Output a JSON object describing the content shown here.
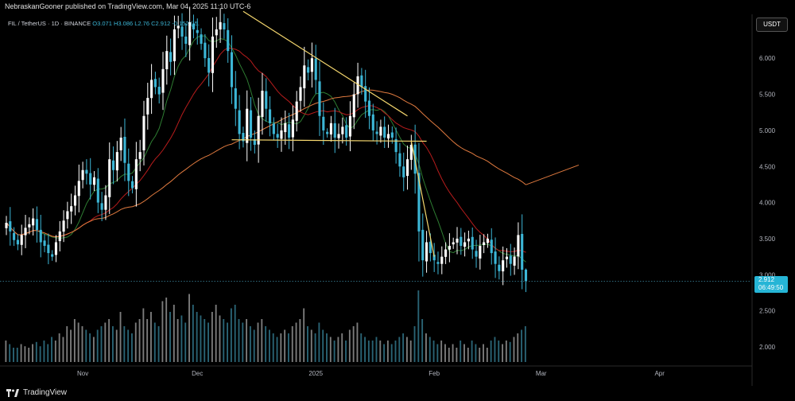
{
  "header": {
    "publisher": "NebraskanGooner published on TradingView.com, Mar 04, 2025 11:10 UTC-6"
  },
  "legend": {
    "symbol": "FIL / TetherUS · 1D · BINANCE",
    "ohlc": "O3.071  H3.086  L2.76  C2.912  -0.152 (-5."
  },
  "currency": "USDT",
  "price_tag": {
    "price": "2.912",
    "countdown": "06:49:50"
  },
  "brand": {
    "name": "TradingView"
  },
  "chart_data": {
    "type": "candlestick",
    "title": "",
    "x_ticks": [
      {
        "label": "Nov",
        "date": "2024-11-01"
      },
      {
        "label": "Dec",
        "date": "2024-12-01"
      },
      {
        "label": "2025",
        "date": "2025-01-01"
      },
      {
        "label": "Feb",
        "date": "2025-02-01"
      },
      {
        "label": "Mar",
        "date": "2025-03-01"
      },
      {
        "label": "Apr",
        "date": "2025-04-01"
      }
    ],
    "y_ticks": [
      "6.000",
      "5.500",
      "5.000",
      "4.500",
      "4.000",
      "3.500",
      "3.000",
      "2.500",
      "2.000"
    ],
    "ylim": [
      1.7,
      6.6
    ],
    "last_price": 2.912,
    "closes": [
      3.72,
      3.6,
      3.48,
      3.42,
      3.55,
      3.65,
      3.7,
      3.78,
      3.62,
      3.45,
      3.4,
      3.3,
      3.25,
      3.45,
      3.6,
      3.75,
      3.88,
      3.95,
      4.1,
      4.3,
      4.45,
      4.4,
      4.25,
      4.35,
      4.0,
      3.9,
      4.1,
      4.6,
      4.45,
      4.7,
      4.9,
      4.55,
      4.3,
      4.2,
      4.6,
      4.7,
      5.2,
      5.45,
      5.7,
      5.6,
      5.5,
      5.85,
      6.1,
      5.95,
      6.4,
      6.45,
      6.3,
      6.2,
      6.5,
      6.4,
      6.35,
      6.2,
      6.0,
      5.8,
      6.3,
      6.4,
      6.5,
      6.4,
      6.1,
      5.6,
      5.3,
      4.95,
      4.85,
      5.3,
      4.9,
      4.8,
      5.2,
      5.55,
      5.3,
      5.1,
      4.95,
      4.9,
      5.0,
      5.1,
      4.9,
      5.15,
      5.4,
      5.6,
      5.9,
      5.8,
      6.0,
      5.7,
      5.2,
      5.0,
      4.95,
      5.1,
      4.9,
      4.95,
      5.05,
      4.9,
      5.2,
      5.5,
      5.75,
      5.6,
      5.4,
      5.2,
      5.0,
      4.95,
      5.05,
      4.9,
      4.95,
      4.9,
      4.7,
      4.5,
      4.35,
      4.6,
      4.8,
      4.4,
      3.6,
      3.2,
      3.45,
      3.3,
      3.2,
      3.15,
      3.25,
      3.35,
      3.4,
      3.45,
      3.5,
      3.4,
      3.45,
      3.5,
      3.35,
      3.25,
      3.4,
      3.45,
      3.5,
      3.3,
      3.15,
      3.05,
      3.2,
      3.25,
      3.15,
      3.25,
      3.55,
      3.07,
      2.912
    ],
    "volumes": [
      0.3,
      0.25,
      0.2,
      0.2,
      0.25,
      0.22,
      0.2,
      0.25,
      0.28,
      0.22,
      0.3,
      0.25,
      0.35,
      0.3,
      0.4,
      0.35,
      0.5,
      0.45,
      0.6,
      0.55,
      0.5,
      0.45,
      0.4,
      0.35,
      0.45,
      0.5,
      0.55,
      0.6,
      0.5,
      0.45,
      0.7,
      0.5,
      0.45,
      0.4,
      0.55,
      0.6,
      0.75,
      0.6,
      0.7,
      0.55,
      0.5,
      0.85,
      0.9,
      0.7,
      0.8,
      0.6,
      0.65,
      0.55,
      0.95,
      0.8,
      0.7,
      0.65,
      0.6,
      0.55,
      0.7,
      0.8,
      0.65,
      0.6,
      0.55,
      0.75,
      0.8,
      0.6,
      0.55,
      0.6,
      0.5,
      0.45,
      0.55,
      0.6,
      0.5,
      0.45,
      0.4,
      0.35,
      0.4,
      0.45,
      0.4,
      0.5,
      0.55,
      0.6,
      0.75,
      0.5,
      0.45,
      0.4,
      0.55,
      0.45,
      0.4,
      0.35,
      0.3,
      0.35,
      0.4,
      0.3,
      0.45,
      0.5,
      0.55,
      0.4,
      0.35,
      0.3,
      0.3,
      0.35,
      0.3,
      0.25,
      0.3,
      0.25,
      0.3,
      0.35,
      0.4,
      0.35,
      0.3,
      0.5,
      1.0,
      0.6,
      0.4,
      0.35,
      0.3,
      0.25,
      0.3,
      0.25,
      0.2,
      0.25,
      0.2,
      0.3,
      0.25,
      0.2,
      0.3,
      0.25,
      0.2,
      0.25,
      0.2,
      0.3,
      0.35,
      0.3,
      0.25,
      0.3,
      0.28,
      0.35,
      0.4,
      0.45,
      0.5
    ],
    "trendlines": [
      {
        "name": "descending-resistance",
        "points": [
          [
            "2024-12-13",
            6.65
          ],
          [
            "2025-01-25",
            5.2
          ]
        ]
      },
      {
        "name": "horizontal-support",
        "points": [
          [
            "2024-12-10",
            4.87
          ],
          [
            "2025-01-30",
            4.85
          ]
        ]
      },
      {
        "name": "breakdown-line",
        "points": [
          [
            "2025-01-26",
            4.85
          ],
          [
            "2025-02-01",
            3.25
          ]
        ]
      }
    ],
    "colors": {
      "up": "#ffffff",
      "down": "#3cb6d6",
      "background": "#000000",
      "ma_fast": "#2e7d32",
      "ma_mid": "#b71c1c",
      "ma_slow": "#e07a3f",
      "trendline": "#f5d76e"
    }
  }
}
